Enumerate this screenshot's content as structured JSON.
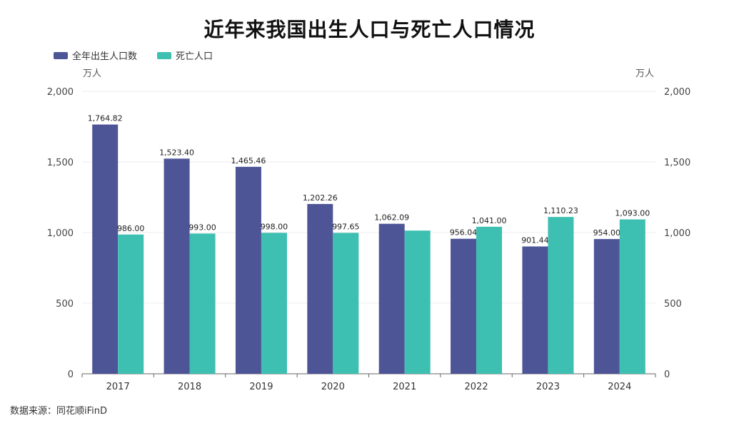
{
  "chart_data": {
    "type": "bar",
    "title": "近年来我国出生人口与死亡人口情况",
    "categories": [
      "2017",
      "2018",
      "2019",
      "2020",
      "2021",
      "2022",
      "2023",
      "2024"
    ],
    "series": [
      {
        "name": "全年出生人口数",
        "color": "#4e5597",
        "values": [
          1764.82,
          1523.4,
          1465.46,
          1202.26,
          1062.09,
          956.04,
          901.44,
          954.0
        ],
        "labels": [
          "1,764.82",
          "1,523.40",
          "1,465.46",
          "1,202.26",
          "1,062.09",
          "956.04",
          "901.44",
          "954.00"
        ]
      },
      {
        "name": "死亡人口",
        "color": "#3dbfb1",
        "values": [
          986.0,
          993.0,
          998.0,
          997.65,
          1014.0,
          1041.0,
          1110.23,
          1093.0
        ],
        "labels": [
          "986.00",
          "993.00",
          "998.00",
          "997.65",
          "",
          "1,041.00",
          "1,110.23",
          "1,093.00"
        ]
      }
    ],
    "ylabel_left": "万人",
    "ylabel_right": "万人",
    "ylim": [
      0,
      2000
    ],
    "yticks": [
      0,
      500,
      1000,
      1500,
      2000
    ],
    "ytick_labels": [
      "0",
      "500",
      "1,000",
      "1,500",
      "2,000"
    ],
    "grid": true,
    "legend_position": "top-left"
  },
  "source": "数据来源：同花顺iFinD"
}
